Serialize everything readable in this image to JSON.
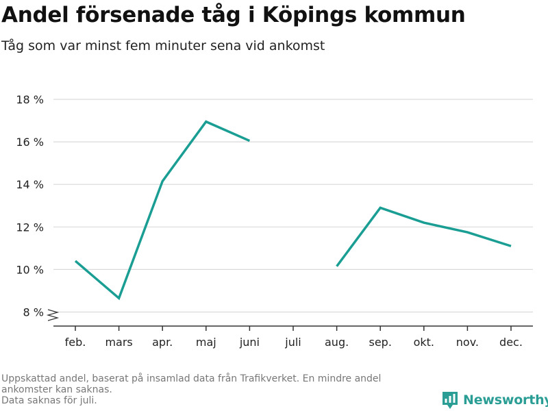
{
  "header": {
    "title": "Andel försenade tåg i Köpings kommun",
    "subtitle": "Tåg som var minst fem minuter sena vid ankomst"
  },
  "footnote": {
    "lines": [
      "Uppskattad andel, baserat på insamlad data från Trafikverket. En mindre andel",
      "ankomster kan saknas.",
      "Data saknas för juli."
    ]
  },
  "brand": {
    "name": "Newsworthy",
    "icon": "newsworthy-logo-icon"
  },
  "colors": {
    "line": "#1a9e94",
    "grid": "#d9d9d9",
    "axis": "#333333",
    "brand": "#2a9d95"
  },
  "chart_data": {
    "type": "line",
    "categories": [
      "feb.",
      "mars",
      "apr.",
      "maj",
      "juni",
      "juli",
      "aug.",
      "sep.",
      "okt.",
      "nov.",
      "dec."
    ],
    "series": [
      {
        "values": [
          10.4,
          8.65,
          14.15,
          16.95,
          16.05,
          null,
          10.15,
          12.9,
          12.2,
          11.75,
          11.1
        ]
      }
    ],
    "yticks": [
      8,
      10,
      12,
      14,
      16,
      18
    ],
    "ytick_labels": [
      "8 %",
      "10 %",
      "12 %",
      "14 %",
      "16 %",
      "18 %"
    ],
    "ylim": [
      7.6,
      18
    ],
    "y_axis_break": true,
    "grid": true,
    "xlabel": "",
    "ylabel": ""
  }
}
